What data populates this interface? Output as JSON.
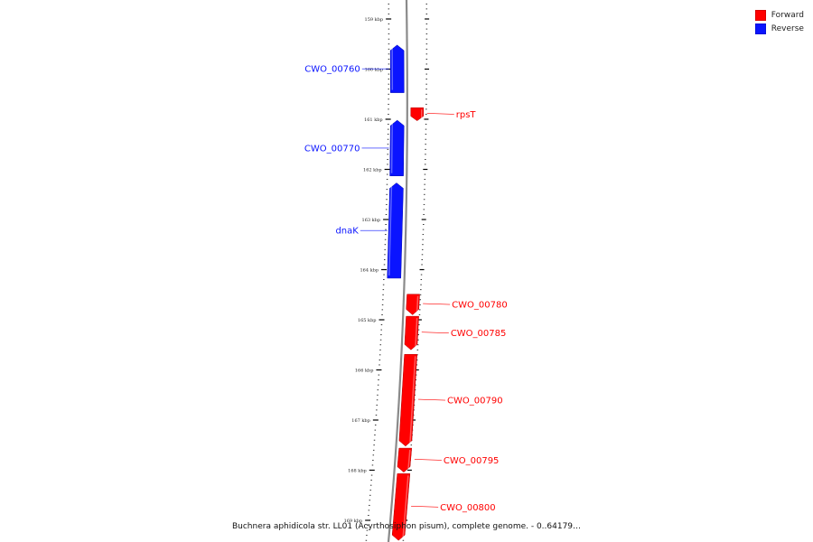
{
  "legend": [
    {
      "label": "Forward",
      "color": "#ff0000"
    },
    {
      "label": "Reverse",
      "color": "#0a14ff"
    }
  ],
  "caption": "Buchnera aphidicola str. LL01 (Acyrthosiphon pisum), complete genome. - 0..64179…",
  "axis": {
    "unit": "kbp",
    "ticks": [
      159,
      160,
      161,
      162,
      163,
      164,
      165,
      166,
      167,
      168,
      169
    ]
  },
  "genes": [
    {
      "name": "CWO_00760",
      "strand": "reverse",
      "start_kbp": 159.52,
      "end_kbp": 160.47
    },
    {
      "name": "rpsT",
      "strand": "forward",
      "start_kbp": 160.77,
      "end_kbp": 161.03
    },
    {
      "name": "CWO_00770",
      "strand": "reverse",
      "start_kbp": 161.02,
      "end_kbp": 162.13
    },
    {
      "name": "dnaK",
      "strand": "reverse",
      "start_kbp": 162.27,
      "end_kbp": 164.17
    },
    {
      "name": "CWO_00780",
      "strand": "forward",
      "start_kbp": 164.49,
      "end_kbp": 164.9
    },
    {
      "name": "CWO_00785",
      "strand": "forward",
      "start_kbp": 164.93,
      "end_kbp": 165.6
    },
    {
      "name": "CWO_00790",
      "strand": "forward",
      "start_kbp": 165.69,
      "end_kbp": 167.52
    },
    {
      "name": "CWO_00795",
      "strand": "forward",
      "start_kbp": 167.56,
      "end_kbp": 168.04
    },
    {
      "name": "CWO_00800",
      "strand": "forward",
      "start_kbp": 168.07,
      "end_kbp": 169.4
    }
  ]
}
